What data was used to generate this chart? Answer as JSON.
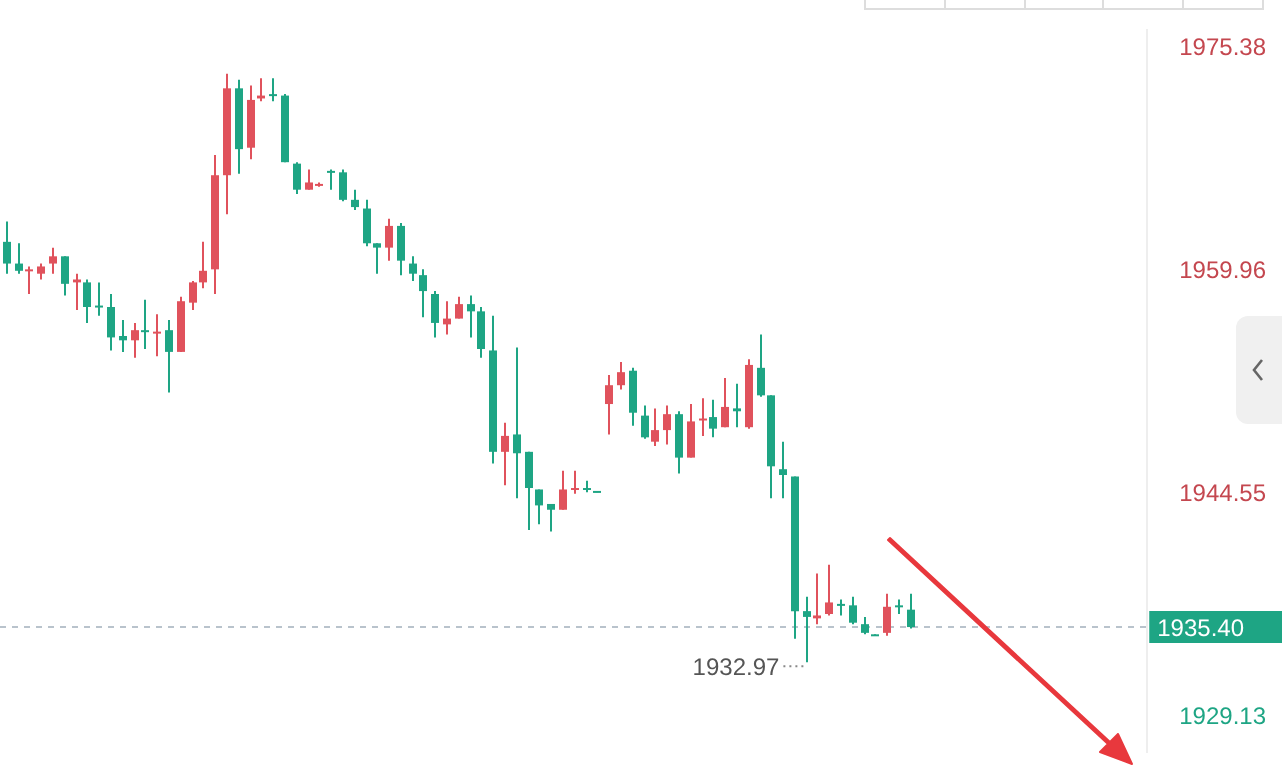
{
  "chart_data": {
    "type": "candlestick",
    "categories": [
      null,
      null,
      null,
      null,
      null,
      null,
      null,
      null,
      null,
      null,
      null,
      null,
      null,
      null,
      null,
      null,
      null,
      null,
      null,
      null,
      null,
      null,
      null,
      null,
      null,
      null,
      null,
      null,
      null,
      null,
      null,
      null,
      null,
      null,
      null,
      null,
      null,
      null,
      null,
      null,
      null,
      null,
      null,
      null,
      null,
      null,
      null,
      null,
      null,
      null,
      null,
      null,
      null,
      null,
      null,
      null,
      null,
      null,
      null,
      null,
      null,
      null,
      null,
      null,
      null,
      null,
      null,
      null,
      null,
      null,
      null,
      null,
      null,
      null,
      null,
      null,
      null,
      null,
      null,
      null,
      null,
      null,
      null,
      null,
      null,
      null,
      null,
      null,
      null,
      null,
      null,
      null,
      null,
      null,
      null,
      null,
      null,
      null,
      null
    ],
    "ohlc": [
      [
        1962.0,
        1963.4,
        1959.8,
        1960.5
      ],
      [
        1960.5,
        1961.9,
        1959.8,
        1960.0
      ],
      [
        1960.0,
        1960.3,
        1958.4,
        1960.1
      ],
      [
        1959.8,
        1960.5,
        1959.4,
        1960.3
      ],
      [
        1960.5,
        1961.6,
        1959.8,
        1961.0
      ],
      [
        1961.0,
        1961.0,
        1958.3,
        1959.1
      ],
      [
        1959.2,
        1959.8,
        1957.3,
        1959.4
      ],
      [
        1959.2,
        1959.4,
        1956.4,
        1957.5
      ],
      [
        1957.6,
        1959.2,
        1956.9,
        1957.5
      ],
      [
        1957.5,
        1958.4,
        1954.5,
        1955.4
      ],
      [
        1955.5,
        1956.6,
        1954.4,
        1955.2
      ],
      [
        1955.2,
        1956.4,
        1954.0,
        1955.9
      ],
      [
        1955.9,
        1958.0,
        1954.6,
        1955.8
      ],
      [
        1955.7,
        1957.0,
        1954.1,
        1955.8
      ],
      [
        1955.9,
        1956.6,
        1951.6,
        1954.4
      ],
      [
        1954.4,
        1958.2,
        1954.4,
        1957.9
      ],
      [
        1957.8,
        1959.3,
        1957.3,
        1959.2
      ],
      [
        1959.2,
        1962.0,
        1958.8,
        1960.0
      ],
      [
        1960.1,
        1968.0,
        1958.4,
        1966.6
      ],
      [
        1966.6,
        1973.6,
        1963.9,
        1972.6
      ],
      [
        1972.6,
        1973.2,
        1966.7,
        1968.4
      ],
      [
        1968.5,
        1972.8,
        1967.7,
        1971.8
      ],
      [
        1971.9,
        1973.3,
        1971.7,
        1972.1
      ],
      [
        1972.2,
        1973.3,
        1971.7,
        1972.1
      ],
      [
        1972.1,
        1972.2,
        1967.5,
        1967.5
      ],
      [
        1967.4,
        1967.5,
        1965.3,
        1965.6
      ],
      [
        1965.6,
        1967.0,
        1965.6,
        1966.1
      ],
      [
        1965.9,
        1966.1,
        1965.8,
        1966.0
      ],
      [
        1966.9,
        1967.0,
        1965.6,
        1966.8
      ],
      [
        1966.8,
        1967.0,
        1964.8,
        1964.9
      ],
      [
        1964.9,
        1965.6,
        1964.2,
        1964.4
      ],
      [
        1964.3,
        1964.9,
        1961.7,
        1961.9
      ],
      [
        1961.9,
        1961.9,
        1959.8,
        1961.6
      ],
      [
        1961.6,
        1963.6,
        1960.7,
        1963.1
      ],
      [
        1963.1,
        1963.3,
        1959.7,
        1960.7
      ],
      [
        1960.5,
        1961.0,
        1959.3,
        1959.8
      ],
      [
        1959.7,
        1960.1,
        1956.8,
        1958.6
      ],
      [
        1958.4,
        1958.6,
        1955.4,
        1956.4
      ],
      [
        1956.3,
        1957.9,
        1955.6,
        1956.7
      ],
      [
        1956.7,
        1958.2,
        1956.7,
        1957.7
      ],
      [
        1957.7,
        1958.3,
        1955.4,
        1957.2
      ],
      [
        1957.2,
        1957.5,
        1954.0,
        1954.6
      ],
      [
        1954.5,
        1956.9,
        1946.7,
        1947.5
      ],
      [
        1947.5,
        1949.5,
        1945.2,
        1948.6
      ],
      [
        1948.7,
        1954.7,
        1944.3,
        1947.4
      ],
      [
        1947.5,
        1947.5,
        1942.1,
        1945.0
      ],
      [
        1944.9,
        1944.9,
        1942.5,
        1943.8
      ],
      [
        1943.9,
        1943.9,
        1942.0,
        1943.5
      ],
      [
        1943.5,
        1946.2,
        1943.5,
        1944.9
      ],
      [
        1944.9,
        1946.2,
        1944.6,
        1945.0
      ],
      [
        1945.0,
        1945.5,
        1944.7,
        1944.9
      ],
      [
        1944.8,
        1944.8,
        1944.7,
        1944.7
      ],
      [
        1950.8,
        1952.8,
        1948.7,
        1952.1
      ],
      [
        1952.1,
        1953.7,
        1951.8,
        1953.0
      ],
      [
        1953.1,
        1953.3,
        1949.3,
        1950.2
      ],
      [
        1950.0,
        1950.7,
        1948.4,
        1948.5
      ],
      [
        1948.2,
        1950.5,
        1947.9,
        1949.0
      ],
      [
        1949.0,
        1950.7,
        1948.0,
        1950.1
      ],
      [
        1950.1,
        1950.3,
        1946.0,
        1947.1
      ],
      [
        1947.1,
        1950.8,
        1947.1,
        1949.6
      ],
      [
        1949.7,
        1951.2,
        1948.6,
        1949.8
      ],
      [
        1949.9,
        1951.1,
        1948.5,
        1949.1
      ],
      [
        1949.2,
        1952.6,
        1949.2,
        1950.6
      ],
      [
        1950.5,
        1952.2,
        1949.2,
        1950.3
      ],
      [
        1949.2,
        1953.9,
        1949.1,
        1953.5
      ],
      [
        1953.3,
        1955.6,
        1951.3,
        1951.4
      ],
      [
        1951.4,
        1951.4,
        1944.3,
        1946.5
      ],
      [
        1946.3,
        1948.2,
        1944.3,
        1945.9
      ],
      [
        1945.8,
        1945.8,
        1934.6,
        1936.5
      ],
      [
        1936.5,
        1937.5,
        1932.97,
        1936.1
      ],
      [
        1936.0,
        1939.1,
        1935.6,
        1936.2
      ],
      [
        1936.3,
        1939.7,
        1936.2,
        1937.1
      ],
      [
        1937.0,
        1937.3,
        1936.2,
        1936.9
      ],
      [
        1936.9,
        1937.5,
        1935.6,
        1935.7
      ],
      [
        1935.6,
        1936.1,
        1934.9,
        1935.0
      ],
      [
        1934.9,
        1934.9,
        1934.8,
        1934.8
      ],
      [
        1935.0,
        1937.7,
        1934.8,
        1936.8
      ],
      [
        1936.9,
        1937.3,
        1936.3,
        1936.8
      ],
      [
        1936.6,
        1937.7,
        1935.3,
        1935.4
      ],
      null,
      null,
      null,
      null,
      null,
      null,
      null,
      null,
      null,
      null,
      null,
      null,
      null,
      null,
      null,
      null,
      null,
      null,
      null,
      null
    ],
    "ylim": [
      1926.8,
      1976.6
    ],
    "yticks": [
      1975.38,
      1959.96,
      1944.55,
      1929.13
    ],
    "ref_lines": [
      {
        "axis": "y",
        "value": 1935.4,
        "label": "1935.40",
        "line_style": "dashed"
      }
    ],
    "annotations": [
      "1932.97"
    ]
  }
}
